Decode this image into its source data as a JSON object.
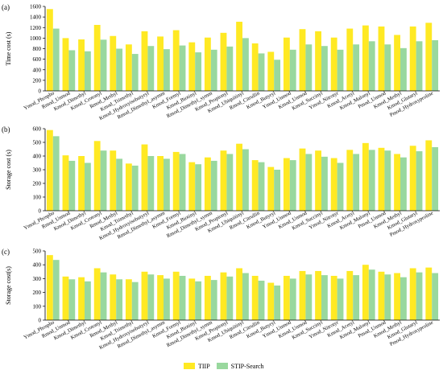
{
  "chart_data": [
    {
      "panel": "(a)",
      "type": "bar",
      "ylabel": "Time cost (s)",
      "ylim": [
        0,
        1600
      ],
      "yticks": [
        0,
        200,
        400,
        600,
        800,
        1000,
        1200,
        1400,
        1600
      ],
      "categories": [
        "Ymod_Phospho",
        "Rmod_Unmod",
        "Kmod_Dimethyl",
        "Kmod_Crotonyl",
        "Rmod_Methyl",
        "Kmod_Trimethyl",
        "Kmod_Hydroxyisobutyryl",
        "Rmod_Dimethyl_asymm",
        "Kmod_Formyl",
        "Kmod_Biotinyl",
        "Rmod_Dimethyl_symm",
        "Kmod_Propionyl",
        "Kmod_Ubiquitinyl",
        "Rmod_Citrullin",
        "Kmod_Butyryl",
        "Ymod_Unmod",
        "Kmod_Unmod",
        "Kmod_Succinyl",
        "Ymod_Nitrotyr",
        "Kmod_Acetyl",
        "Kmod_Malonyl",
        "Pmod_Unmod",
        "Kmod_Methyl",
        "Kmod_Glutaryl",
        "Pmod_Hydroxyproline"
      ],
      "series": [
        {
          "name": "TIIP",
          "color": "#FFE923",
          "values": [
            1550,
            1000,
            975,
            1250,
            1040,
            880,
            1130,
            1030,
            1150,
            920,
            1010,
            1100,
            1310,
            900,
            740,
            1010,
            1170,
            1130,
            1010,
            1180,
            1240,
            1220,
            1060,
            1220,
            1290
          ]
        },
        {
          "name": "STIP-Search",
          "color": "#99D89E",
          "values": [
            1180,
            770,
            750,
            970,
            800,
            700,
            850,
            790,
            860,
            730,
            780,
            840,
            1000,
            710,
            590,
            780,
            880,
            850,
            780,
            880,
            940,
            880,
            810,
            940,
            960
          ]
        }
      ]
    },
    {
      "panel": "(b)",
      "type": "bar",
      "ylabel": "Storage cost (s)",
      "ylim": [
        0,
        600
      ],
      "yticks": [
        0,
        100,
        200,
        300,
        400,
        500,
        600
      ],
      "categories": [
        "Ymod_Phospho",
        "Rmod_Unmod",
        "Kmod_Dimethyl",
        "Kmod_Crotonyl",
        "Rmod_Methyl",
        "Kmod_Trimethyl",
        "Kmod_Hydroxyisobutyryl",
        "Rmod_Dimethyl_asymm",
        "Kmod_Formyl",
        "Kmod_Biotinyl",
        "Rmod_Dimethyl_symm",
        "Kmod_Propionyl",
        "Kmod_Ubiquitinyl",
        "Rmod_Citrullin",
        "Kmod_Butyryl",
        "Ymod_Unmod",
        "Kmod_Unmod",
        "Kmod_Succinyl",
        "Ymod_Nitrotyr",
        "Kmod_Acetyl",
        "Kmod_Malonyl",
        "Pmod_Unmod",
        "Kmod_Methyl",
        "Kmod_Glutaryl",
        "Pmod_Hydroxyproline"
      ],
      "series": [
        {
          "name": "TIIP",
          "color": "#FFE923",
          "values": [
            590,
            405,
            400,
            510,
            440,
            345,
            485,
            400,
            430,
            355,
            390,
            440,
            490,
            370,
            320,
            385,
            455,
            440,
            385,
            445,
            495,
            460,
            415,
            475,
            515
          ]
        },
        {
          "name": "STIP-Search",
          "color": "#99D89E",
          "values": [
            545,
            365,
            350,
            440,
            380,
            330,
            400,
            380,
            415,
            340,
            365,
            415,
            450,
            355,
            300,
            370,
            415,
            395,
            350,
            415,
            445,
            440,
            390,
            435,
            465
          ]
        }
      ]
    },
    {
      "panel": "(c)",
      "type": "bar",
      "ylabel": "Storage cost(s)",
      "ylim": [
        0,
        500
      ],
      "yticks": [
        0,
        100,
        200,
        300,
        400,
        500
      ],
      "categories": [
        "Ymod_Phospho",
        "Rmod_Unmod",
        "Kmod_Dimethyl",
        "Kmod_Crotonyl",
        "Rmod_Methyl",
        "Kmod_Trimethyl",
        "Kmod_Hydroxyisobutyryl",
        "Rmod_Dimethyl_asymm",
        "Kmod_Formyl",
        "Kmod_Biotinyl",
        "Rmod_Dimethyl_symm",
        "Kmod_Propionyl",
        "Kmod_Ubiquitinyl",
        "Rmod_Citrullin",
        "Kmod_Butyryl",
        "Ymod_Unmod",
        "Kmod_Unmod",
        "Kmod_Succinyl",
        "Ymod_Nitrotyr",
        "Kmod_Acetyl",
        "Kmod_Malonyl",
        "Pmod_Unmod",
        "Kmod_Methyl",
        "Kmod_Glutaryl",
        "Pmod_Hydroxyproline"
      ],
      "series": [
        {
          "name": "TIIP",
          "color": "#FFE923",
          "values": [
            470,
            315,
            310,
            375,
            330,
            295,
            350,
            325,
            350,
            300,
            320,
            345,
            375,
            320,
            270,
            320,
            355,
            355,
            320,
            355,
            400,
            350,
            340,
            375,
            380
          ]
        },
        {
          "name": "STIP-Search",
          "color": "#99D89E",
          "values": [
            435,
            295,
            280,
            345,
            295,
            275,
            330,
            300,
            320,
            280,
            290,
            315,
            340,
            285,
            250,
            300,
            330,
            325,
            300,
            325,
            365,
            330,
            310,
            345,
            340
          ]
        }
      ]
    }
  ],
  "legend": {
    "items": [
      {
        "label": "TIIP",
        "color": "#FFE923"
      },
      {
        "label": "STIP-Search",
        "color": "#99D89E"
      }
    ]
  }
}
